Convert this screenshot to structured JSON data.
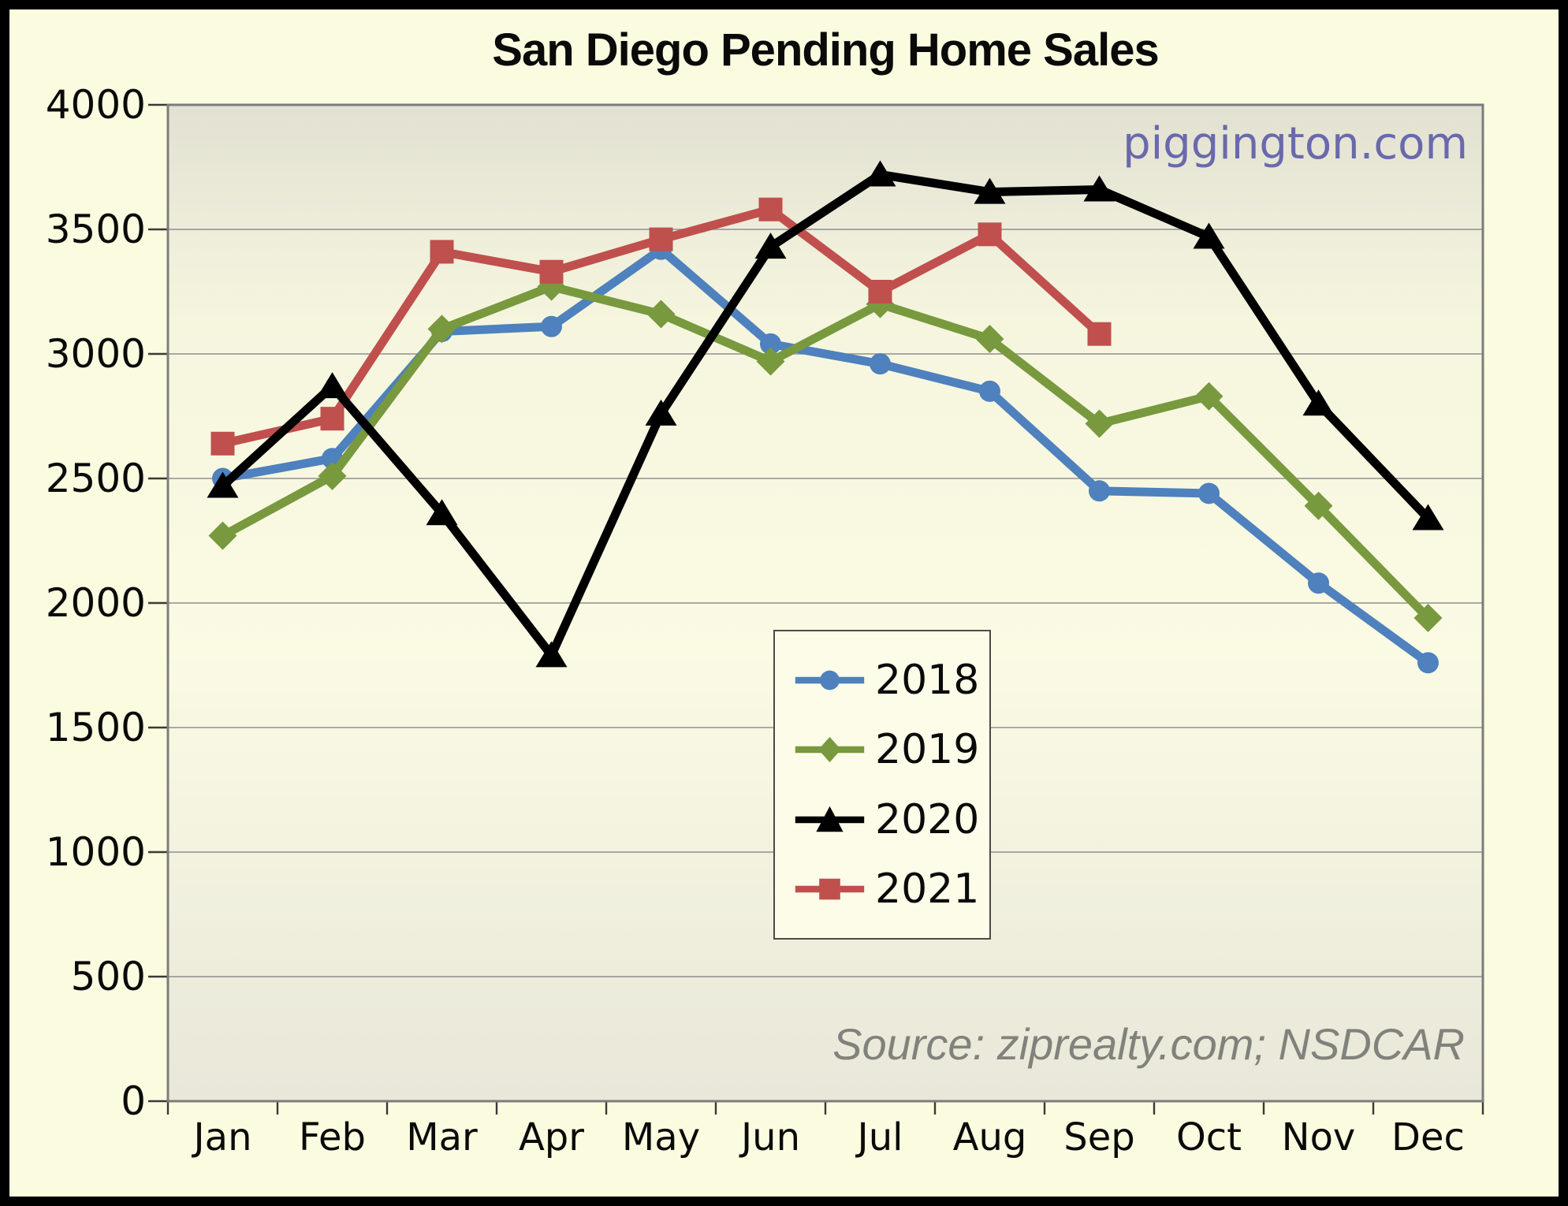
{
  "title": "San Diego Pending Home Sales",
  "watermark": "piggington.com",
  "source_note": "Source: ziprealty.com; NSDCAR",
  "yticks": [
    "0",
    "500",
    "1000",
    "1500",
    "2000",
    "2500",
    "3000",
    "3500",
    "4000"
  ],
  "chart_data": {
    "type": "line",
    "title": "San Diego Pending Home Sales",
    "categories": [
      "Jan",
      "Feb",
      "Mar",
      "Apr",
      "May",
      "Jun",
      "Jul",
      "Aug",
      "Sep",
      "Oct",
      "Nov",
      "Dec"
    ],
    "series": [
      {
        "name": "2018",
        "color": "#4E81BD",
        "marker": "circle",
        "values": [
          2500,
          2580,
          3090,
          3110,
          3420,
          3040,
          2960,
          2850,
          2450,
          2440,
          2080,
          1760
        ]
      },
      {
        "name": "2019",
        "color": "#78993E",
        "marker": "diamond",
        "values": [
          2270,
          2510,
          3100,
          3270,
          3160,
          2970,
          3200,
          3060,
          2720,
          2830,
          2390,
          1940
        ]
      },
      {
        "name": "2020",
        "color": "#000000",
        "marker": "triangle",
        "values": [
          2470,
          2870,
          2360,
          1790,
          2760,
          3430,
          3720,
          3650,
          3660,
          3470,
          2800,
          2340
        ]
      },
      {
        "name": "2021",
        "color": "#C0504D",
        "marker": "square",
        "values": [
          2640,
          2740,
          3410,
          3330,
          3460,
          3580,
          3250,
          3480,
          3080,
          null,
          null,
          null
        ]
      }
    ],
    "xlabel": "",
    "ylabel": "",
    "ylim": [
      0,
      4000
    ],
    "ytick_step": 500,
    "grid": "horizontal",
    "legend_position": "center-box",
    "annotations": [
      "piggington.com",
      "Source: ziprealty.com; NSDCAR"
    ]
  }
}
